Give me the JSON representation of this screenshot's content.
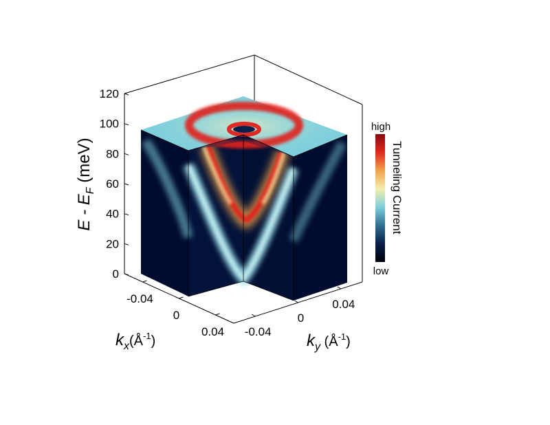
{
  "chart_data": {
    "type": "heatmap",
    "subtype": "3d-cutaway-band-map",
    "title": "",
    "z_axis": {
      "label_main": "E - E",
      "label_sub": "F",
      "label_unit": " (meV)",
      "range": [
        0,
        120
      ],
      "ticks": [
        0,
        20,
        40,
        60,
        80,
        100,
        120
      ],
      "tick_labels": [
        "0",
        "20",
        "40",
        "60",
        "80",
        "100",
        "120"
      ]
    },
    "kx_axis": {
      "label_main": "k",
      "label_sub": "x",
      "label_unit": "(Å",
      "label_sup": "-1",
      "label_close": ")",
      "range": [
        -0.06,
        0.06
      ],
      "ticks": [
        -0.04,
        0,
        0.04
      ],
      "tick_labels": [
        "-0.04",
        "0",
        "0.04"
      ]
    },
    "ky_axis": {
      "label_main": "k",
      "label_sub": "y",
      "label_unit": " (Å",
      "label_sup": "-1",
      "label_close": ")",
      "range": [
        -0.06,
        0.06
      ],
      "ticks": [
        -0.04,
        0,
        0.04
      ],
      "tick_labels": [
        "-0.04",
        "0",
        "0.04"
      ]
    },
    "colorbar": {
      "title": "Tunneling Current",
      "high_label": "high",
      "low_label": "low",
      "stops": [
        "#000008",
        "#0a1f4a",
        "#2f6f8f",
        "#7fcfdc",
        "#f4eeb0",
        "#f2a34c",
        "#e02a1e",
        "#8a0a12"
      ]
    },
    "bands": [
      {
        "name": "outer cone",
        "apex_meV": 0,
        "k_at_100meV": 0.052
      },
      {
        "name": "inner cone",
        "apex_meV": 37,
        "k_at_100meV": 0.03
      }
    ],
    "colors": {
      "background": "#000c2e",
      "band_outer": "#9fe0ea",
      "band_inner_bottom": "#e0201c",
      "band_inner_top": "#f5e6a3"
    }
  }
}
